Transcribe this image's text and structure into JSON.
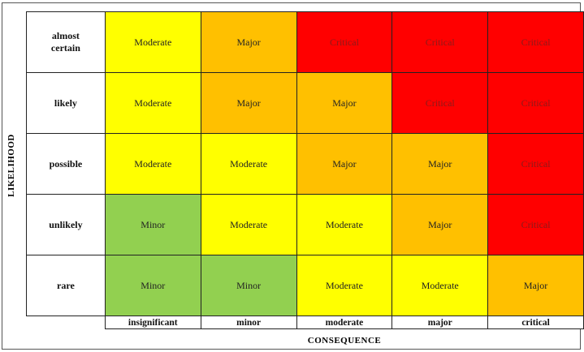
{
  "axes": {
    "y_title": "LIKELIHOOD",
    "x_title": "CONSEQUENCE"
  },
  "consequence_levels": [
    "insignificant",
    "minor",
    "moderate",
    "major",
    "critical"
  ],
  "likelihood_levels": [
    "almost certain",
    "likely",
    "possible",
    "unlikely",
    "rare"
  ],
  "colors": {
    "Minor": "#92d050",
    "Moderate": "#ffff00",
    "Major": "#ffc000",
    "Critical": "#ff0000"
  },
  "matrix": [
    [
      "Moderate",
      "Major",
      "Critical",
      "Critical",
      "Critical"
    ],
    [
      "Moderate",
      "Major",
      "Major",
      "Critical",
      "Critical"
    ],
    [
      "Moderate",
      "Moderate",
      "Major",
      "Major",
      "Critical"
    ],
    [
      "Minor",
      "Moderate",
      "Moderate",
      "Major",
      "Critical"
    ],
    [
      "Minor",
      "Minor",
      "Moderate",
      "Moderate",
      "Major"
    ]
  ]
}
